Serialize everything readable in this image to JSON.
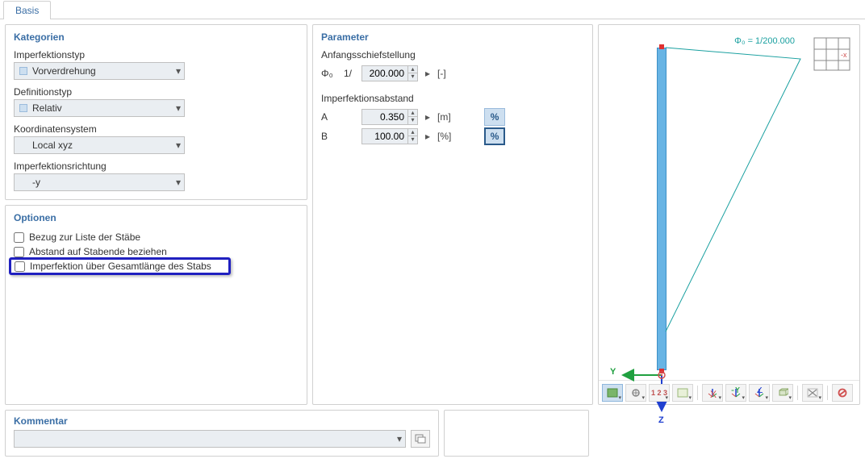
{
  "tabs": {
    "active": "Basis"
  },
  "categories": {
    "title": "Kategorien",
    "fields": [
      {
        "label": "Imperfektionstyp",
        "value": "Vorverdrehung",
        "swatch": true
      },
      {
        "label": "Definitionstyp",
        "value": "Relativ",
        "swatch": true
      },
      {
        "label": "Koordinatensystem",
        "value": "Local xyz",
        "swatch": false
      },
      {
        "label": "Imperfektionsrichtung",
        "value": "-y",
        "swatch": false
      }
    ]
  },
  "options": {
    "title": "Optionen",
    "items": [
      {
        "label": "Bezug zur Liste der Stäbe",
        "checked": false,
        "highlight": false
      },
      {
        "label": "Abstand auf Stabende beziehen",
        "checked": false,
        "highlight": false
      },
      {
        "label": "Imperfektion über Gesamtlänge des Stabs",
        "checked": false,
        "highlight": true
      }
    ]
  },
  "parameters": {
    "title": "Parameter",
    "groups": [
      {
        "head": "Anfangsschiefstellung",
        "rows": [
          {
            "sym": "Φ₀",
            "prefix": "1/",
            "value": "200.000",
            "unit": "[-]",
            "pct": null
          }
        ]
      },
      {
        "head": "Imperfektionsabstand",
        "rows": [
          {
            "sym": "A",
            "prefix": "",
            "value": "0.350",
            "unit": "[m]",
            "pct": "normal"
          },
          {
            "sym": "B",
            "prefix": "",
            "value": "100.00",
            "unit": "[%]",
            "pct": "active"
          }
        ]
      }
    ]
  },
  "comment": {
    "title": "Kommentar",
    "value": ""
  },
  "viewport": {
    "phi_label": "Φ₀ = 1/200.000",
    "axis_y": "Y",
    "axis_z": "Z",
    "colors": {
      "beam": "#68b4e4",
      "beam_border": "#3d8fc6",
      "node": "#e03030",
      "diag": "#1aa0a0",
      "axis_y": "#20a040",
      "axis_z": "#2040d0"
    }
  },
  "toolbar": {
    "buttons": [
      {
        "name": "view-mode-1",
        "active": true,
        "dd": true
      },
      {
        "name": "view-mode-2",
        "active": false,
        "dd": true
      },
      {
        "name": "numbering",
        "active": false,
        "dd": true
      },
      {
        "name": "background",
        "active": false,
        "dd": true
      },
      {
        "name": "sep1",
        "sep": true
      },
      {
        "name": "axis-x",
        "active": false,
        "dd": true
      },
      {
        "name": "axis-y",
        "active": false,
        "dd": true
      },
      {
        "name": "axis-z",
        "active": false,
        "dd": true
      },
      {
        "name": "view-iso",
        "active": false,
        "dd": true
      },
      {
        "name": "sep2",
        "sep": true
      },
      {
        "name": "extents",
        "active": false,
        "dd": true
      },
      {
        "name": "sep3",
        "sep": true
      },
      {
        "name": "reset",
        "active": false,
        "dd": false
      }
    ]
  }
}
